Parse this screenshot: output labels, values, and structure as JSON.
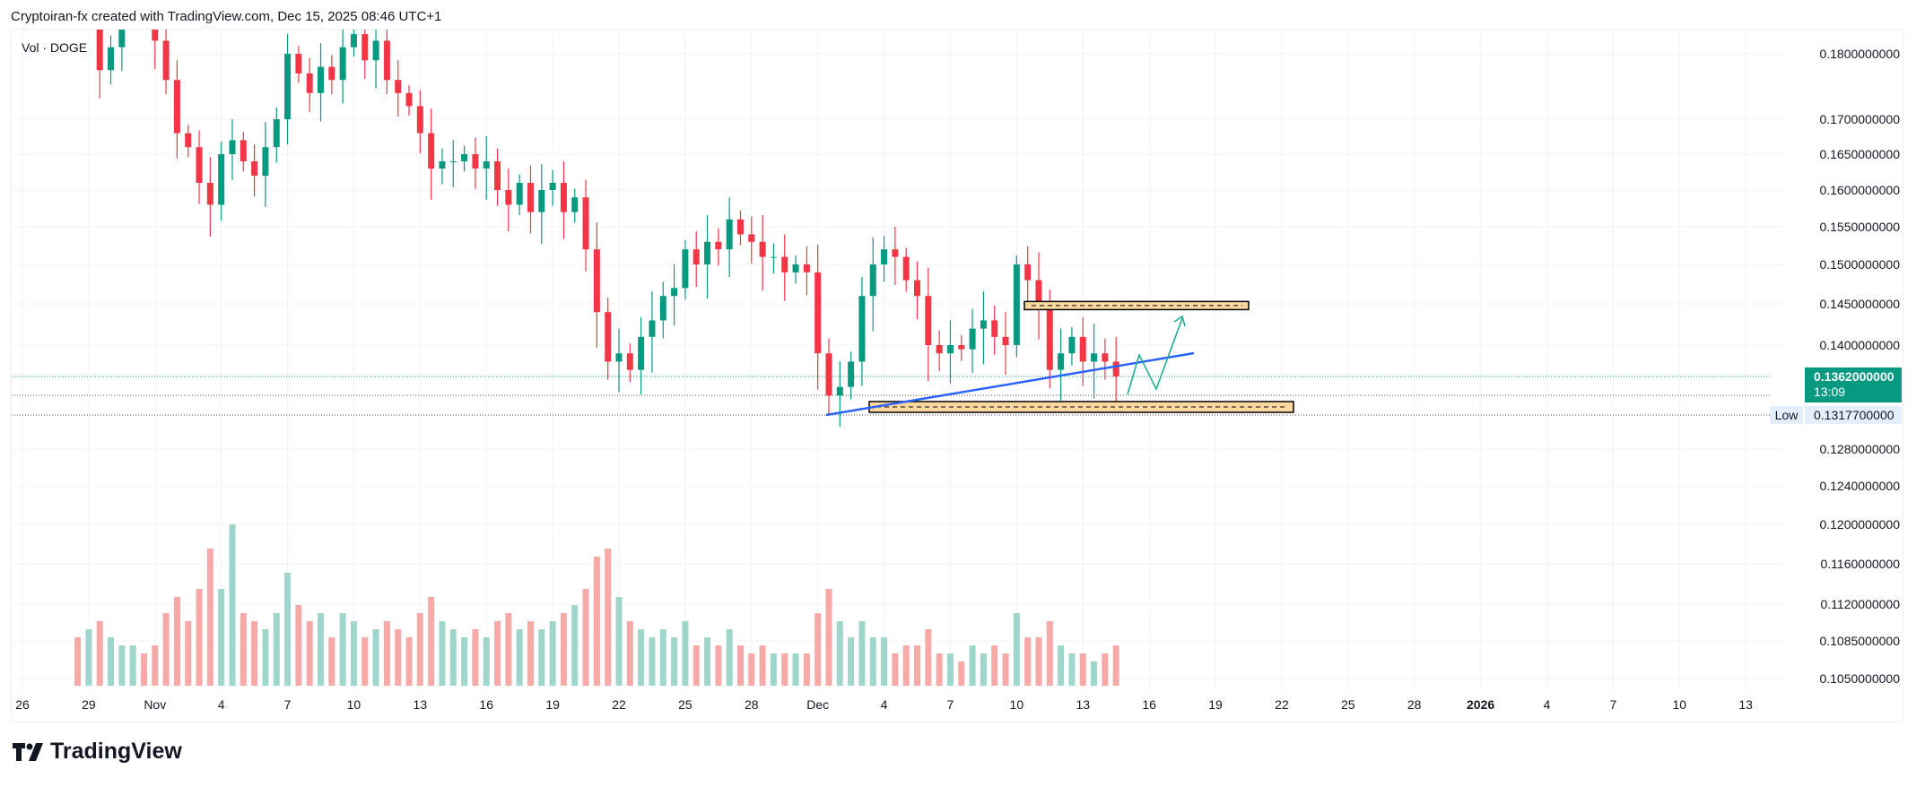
{
  "header": {
    "attribution": "Cryptoiran-fx created with TradingView.com, Dec 15, 2025 08:46 UTC+1"
  },
  "legend": {
    "label": "Vol · DOGE"
  },
  "logo": {
    "text": "TradingView"
  },
  "price_axis": {
    "ticks": [
      "0.1800000000",
      "0.1700000000",
      "0.1650000000",
      "0.1600000000",
      "0.1550000000",
      "0.1500000000",
      "0.1450000000",
      "0.1400000000",
      "0.1280000000",
      "0.1240000000",
      "0.1200000000",
      "0.1160000000",
      "0.1120000000",
      "0.1085000000",
      "0.1050000000"
    ],
    "current_price": "0.1362000000",
    "countdown": "13:09",
    "low_label": "Low",
    "low_value": "0.1317700000"
  },
  "time_axis": {
    "labels": [
      "26",
      "29",
      "Nov",
      "4",
      "7",
      "10",
      "13",
      "16",
      "19",
      "22",
      "25",
      "28",
      "Dec",
      "4",
      "7",
      "10",
      "13",
      "16",
      "19",
      "22",
      "25",
      "28",
      "2026",
      "4",
      "7",
      "10",
      "13"
    ],
    "bold": "2026"
  },
  "colors": {
    "up": "#089981",
    "down": "#f23645",
    "vol_up": "#9fd6cb",
    "vol_down": "#f7a9a7",
    "trendline": "#2962ff",
    "zone_fill": "#ffd8a0",
    "projection": "#22ab94"
  },
  "chart_data": {
    "type": "candlestick",
    "symbol": "DOGE",
    "interval_days": 0.5,
    "first_day_offset_from_oct26": 2.5,
    "candles_close_volume": [
      [
        0.188,
        30
      ],
      [
        0.19,
        35
      ],
      [
        0.1775,
        40
      ],
      [
        0.181,
        30
      ],
      [
        0.186,
        25
      ],
      [
        0.188,
        25
      ],
      [
        0.187,
        20
      ],
      [
        0.182,
        25
      ],
      [
        0.176,
        45
      ],
      [
        0.168,
        55
      ],
      [
        0.166,
        40
      ],
      [
        0.161,
        60
      ],
      [
        0.158,
        85
      ],
      [
        0.165,
        60
      ],
      [
        0.167,
        100
      ],
      [
        0.164,
        45
      ],
      [
        0.162,
        40
      ],
      [
        0.166,
        35
      ],
      [
        0.17,
        45
      ],
      [
        0.18,
        70
      ],
      [
        0.177,
        50
      ],
      [
        0.174,
        40
      ],
      [
        0.178,
        45
      ],
      [
        0.176,
        30
      ],
      [
        0.181,
        45
      ],
      [
        0.183,
        40
      ],
      [
        0.179,
        30
      ],
      [
        0.182,
        35
      ],
      [
        0.176,
        40
      ],
      [
        0.174,
        35
      ],
      [
        0.172,
        30
      ],
      [
        0.168,
        45
      ],
      [
        0.163,
        55
      ],
      [
        0.164,
        40
      ],
      [
        0.164,
        35
      ],
      [
        0.165,
        30
      ],
      [
        0.163,
        35
      ],
      [
        0.164,
        30
      ],
      [
        0.16,
        40
      ],
      [
        0.158,
        45
      ],
      [
        0.161,
        35
      ],
      [
        0.157,
        40
      ],
      [
        0.16,
        35
      ],
      [
        0.161,
        40
      ],
      [
        0.157,
        45
      ],
      [
        0.159,
        50
      ],
      [
        0.152,
        60
      ],
      [
        0.144,
        80
      ],
      [
        0.138,
        85
      ],
      [
        0.139,
        55
      ],
      [
        0.137,
        40
      ],
      [
        0.141,
        35
      ],
      [
        0.143,
        30
      ],
      [
        0.146,
        35
      ],
      [
        0.147,
        30
      ],
      [
        0.152,
        40
      ],
      [
        0.15,
        25
      ],
      [
        0.153,
        30
      ],
      [
        0.152,
        25
      ],
      [
        0.156,
        35
      ],
      [
        0.154,
        25
      ],
      [
        0.153,
        20
      ],
      [
        0.151,
        25
      ],
      [
        0.151,
        20
      ],
      [
        0.149,
        20
      ],
      [
        0.15,
        20
      ],
      [
        0.149,
        20
      ],
      [
        0.139,
        45
      ],
      [
        0.134,
        60
      ],
      [
        0.135,
        40
      ],
      [
        0.138,
        30
      ],
      [
        0.146,
        40
      ],
      [
        0.15,
        30
      ],
      [
        0.152,
        30
      ],
      [
        0.151,
        20
      ],
      [
        0.148,
        25
      ],
      [
        0.146,
        25
      ],
      [
        0.14,
        35
      ],
      [
        0.139,
        20
      ],
      [
        0.14,
        20
      ],
      [
        0.1395,
        15
      ],
      [
        0.142,
        25
      ],
      [
        0.143,
        20
      ],
      [
        0.141,
        25
      ],
      [
        0.14,
        20
      ],
      [
        0.15,
        45
      ],
      [
        0.148,
        30
      ],
      [
        0.145,
        30
      ],
      [
        0.137,
        40
      ],
      [
        0.139,
        25
      ],
      [
        0.141,
        20
      ],
      [
        0.138,
        20
      ],
      [
        0.139,
        15
      ],
      [
        0.138,
        20
      ],
      [
        0.1362,
        25
      ]
    ],
    "drawings": {
      "trendline": {
        "from_price": 0.1318,
        "to_price": 0.1392
      },
      "resistance_zone": {
        "low": 0.1443,
        "high": 0.1453
      },
      "support_zone": {
        "low": 0.1318,
        "high": 0.1328
      },
      "projection_path_prices": [
        0.135,
        0.1392,
        0.1353,
        0.1435
      ]
    }
  }
}
